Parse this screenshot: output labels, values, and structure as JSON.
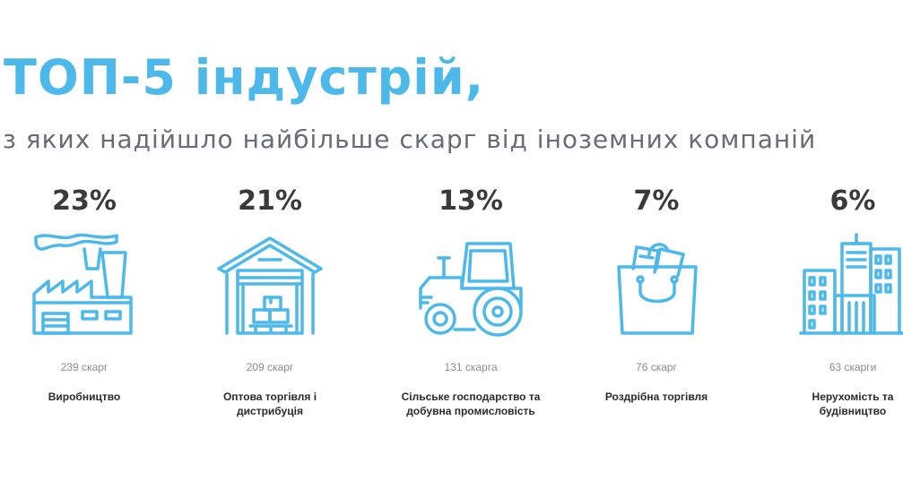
{
  "header": {
    "title": "ТОП-5 індустрій,",
    "subtitle": "з яких надійшло найбільше скарг від іноземних компаній"
  },
  "accent_color": "#4db8ea",
  "industries": [
    {
      "percent": "23%",
      "count": "239 скарг",
      "label": "Виробництво",
      "icon": "factory-icon"
    },
    {
      "percent": "21%",
      "count": "209 скарг",
      "label": "Оптова торгівля і\nдистрибуція",
      "icon": "warehouse-icon"
    },
    {
      "percent": "13%",
      "count": "131 скарга",
      "label": "Сільське господарство та\nдобувна промисловість",
      "icon": "tractor-icon"
    },
    {
      "percent": "7%",
      "count": "76 скарг",
      "label": "Роздрібна торгівля",
      "icon": "shopping-bag-icon"
    },
    {
      "percent": "6%",
      "count": "63 скарги",
      "label": "Нерухомість та\nбудівництво",
      "icon": "buildings-icon"
    }
  ]
}
